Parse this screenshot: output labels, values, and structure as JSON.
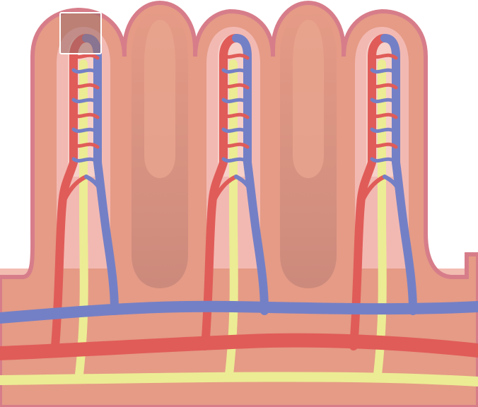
{
  "diagram": {
    "colors": {
      "background": "#ffffff",
      "tissue": "#f2bcb1",
      "villus_outer": "#d77d8a",
      "villus_fill": "#e59b86",
      "villus_inner": "#f2b9b2",
      "crypt_shadow": "#cc8a7c",
      "artery": "#e05c59",
      "vein": "#7480c6",
      "lacteal": "#ecec94",
      "highlight_box_fill": "#9a6a66",
      "highlight_box_border": "#ffffff"
    },
    "villus_count": 3,
    "highlight_box": {
      "visible": true
    }
  }
}
